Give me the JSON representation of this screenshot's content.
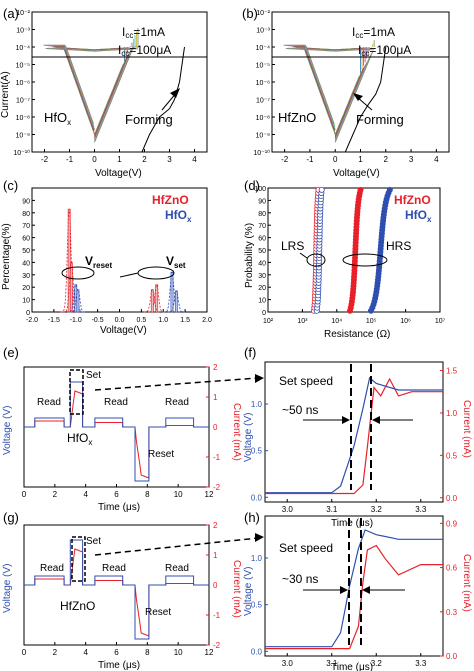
{
  "colors": {
    "blue": "#2f4fb0",
    "red": "#e8202a",
    "black": "#000000",
    "lightblue": "#b9c3ee",
    "pink": "#f2b7b7"
  },
  "panels": {
    "a": {
      "letter": "(a)",
      "material": "HfO",
      "material_sub": "x",
      "icc1": "I",
      "icc1_sub": "cc",
      "icc1_val": "=1mA",
      "icc2_val": "=100μA",
      "forming": "Forming",
      "xlabel": "Voltage(V)",
      "ylabel": "Current(A)"
    },
    "b": {
      "letter": "(b)",
      "material": "HfZnO",
      "icc1_val": "=1mA",
      "icc2_val": "=100μA",
      "forming": "Forming",
      "xlabel": "Voltage(V)"
    },
    "c": {
      "letter": "(c)",
      "legend1": "HfZnO",
      "legend2": "HfO",
      "legend2_sub": "x",
      "vreset": "V",
      "vreset_sub": "reset",
      "vset": "V",
      "vset_sub": "set",
      "xlabel": "Voltage(V)",
      "ylabel": "Percentage(%)"
    },
    "d": {
      "letter": "(d)",
      "legend1": "HfZnO",
      "legend2": "HfO",
      "legend2_sub": "x",
      "lrs": "LRS",
      "hrs": "HRS",
      "xlabel": "Resistance (Ω)",
      "ylabel": "Probability (%)"
    },
    "e": {
      "letter": "(e)",
      "read1": "Read",
      "read2": "Read",
      "read3": "Read",
      "set": "Set",
      "reset": "Reset",
      "material": "HfO",
      "material_sub": "x",
      "xlabel": "Time (μs)",
      "ylabel_left": "Voltage (V)",
      "ylabel_right": "Current (mA)"
    },
    "f": {
      "letter": "(f)",
      "speed": "Set speed",
      "time": "~50 ns",
      "xlabel": "Time (μs)",
      "ylabel_left": "Voltage (V)",
      "ylabel_right": "Current (mA)"
    },
    "g": {
      "letter": "(g)",
      "read1": "Read",
      "read2": "Read",
      "read3": "Read",
      "set": "Set",
      "reset": "Reset",
      "material": "HfZnO",
      "xlabel": "Time (μs)",
      "ylabel_left": "Voltage (V)",
      "ylabel_right": "Current (mA)"
    },
    "h": {
      "letter": "(h)",
      "speed": "Set speed",
      "time": "~30 ns",
      "xlabel": "Time (μs)",
      "ylabel_left": "Voltage (V)",
      "ylabel_right": "Current (mA)"
    }
  },
  "chart_data": [
    {
      "panel": "a",
      "type": "line",
      "ylog": true,
      "xlim": [
        -2.5,
        4.5
      ],
      "ylim": [
        1e-10,
        0.01
      ],
      "xticks": [
        "-2",
        "-1",
        "0",
        "1",
        "2",
        "3",
        "4"
      ],
      "yticks": [
        "10⁻¹⁰",
        "10⁻⁹",
        "10⁻⁸",
        "10⁻⁷",
        "10⁻⁶",
        "10⁻⁵",
        "10⁻⁴",
        "10⁻³",
        "10⁻²"
      ],
      "compliance": [
        0.001,
        0.0001
      ],
      "series": [
        {
          "x": [
            1.9,
            2.2,
            2.6,
            3.0,
            3.2,
            3.4,
            3.6
          ],
          "y": [
            1e-10,
            1e-09,
            1e-08,
            3e-08,
            1e-07,
            1e-06,
            0.0001
          ]
        }
      ]
    },
    {
      "panel": "b",
      "type": "line",
      "ylog": true,
      "xlim": [
        -2.5,
        4.5
      ],
      "ylim": [
        1e-10,
        0.01
      ],
      "xticks": [
        "-2",
        "-1",
        "0",
        "1",
        "2",
        "3",
        "4"
      ],
      "yticks": [
        "10⁻¹⁰",
        "10⁻⁹",
        "10⁻⁸",
        "10⁻⁷",
        "10⁻⁶",
        "10⁻⁵",
        "10⁻⁴",
        "10⁻³",
        "10⁻²"
      ],
      "compliance": [
        0.001,
        0.0001
      ],
      "series": [
        {
          "x": [
            0.4,
            0.7,
            1.0,
            1.3,
            1.6,
            1.8,
            2.0
          ],
          "y": [
            1e-10,
            1e-09,
            1e-08,
            5e-08,
            2e-07,
            1e-06,
            0.0001
          ]
        }
      ]
    },
    {
      "panel": "c",
      "type": "bar",
      "xlim": [
        -2.0,
        2.0
      ],
      "ylim": [
        0,
        100
      ],
      "xticks": [
        "-2.0",
        "-1.5",
        "-1.0",
        "-0.5",
        "0.0",
        "0.5",
        "1.0",
        "1.5",
        "2.0"
      ],
      "yticks": [
        "0",
        "10",
        "20",
        "30",
        "40",
        "50",
        "60",
        "70",
        "80",
        "90"
      ],
      "series": [
        {
          "name": "HfZnO",
          "bars": [
            [
              -1.15,
              83
            ],
            [
              -1.1,
              40
            ],
            [
              0.85,
              22
            ],
            [
              0.75,
              18
            ]
          ]
        },
        {
          "name": "HfOx",
          "bars": [
            [
              -1.0,
              22
            ],
            [
              -0.95,
              18
            ],
            [
              1.2,
              32
            ],
            [
              1.3,
              17
            ]
          ]
        }
      ]
    },
    {
      "panel": "d",
      "type": "scatter",
      "xlog": true,
      "xlim": [
        100,
        10000000
      ],
      "ylim": [
        0,
        100
      ],
      "xticks": [
        "10²",
        "10³",
        "10⁴",
        "10⁵",
        "10⁶",
        "10⁷"
      ],
      "yticks": [
        "0",
        "10",
        "20",
        "30",
        "40",
        "50",
        "60",
        "70",
        "80",
        "90",
        "100"
      ],
      "series": [
        {
          "name": "HfZnO LRS",
          "x_range": [
            2000,
            3200
          ]
        },
        {
          "name": "HfOx LRS",
          "x_range": [
            2400,
            4000
          ]
        },
        {
          "name": "HfZnO HRS",
          "x_range": [
            20000,
            60000
          ]
        },
        {
          "name": "HfOx HRS",
          "x_range": [
            70000,
            500000
          ]
        }
      ]
    },
    {
      "panel": "e",
      "type": "line",
      "xlim": [
        0,
        12
      ],
      "ylim": [
        -2,
        2
      ],
      "ylim_right": [
        -2,
        2
      ],
      "xticks": [
        "0",
        "2",
        "4",
        "6",
        "8",
        "10",
        "12"
      ],
      "yticks_right": [
        "-2",
        "-1",
        "0",
        "1",
        "2"
      ]
    },
    {
      "panel": "f",
      "type": "line",
      "xlim": [
        2.95,
        3.35
      ],
      "ylim": [
        -0.05,
        1.45
      ],
      "ylim_right": [
        -0.05,
        1.6
      ],
      "xticks": [
        "3.0",
        "3.1",
        "3.2",
        "3.3"
      ],
      "yticks": [
        "0.0",
        "0.5",
        "1.0"
      ],
      "yticks_right": [
        "0.0",
        "0.5",
        "1.0",
        "1.5"
      ],
      "series": [
        {
          "name": "Voltage",
          "x": [
            2.95,
            3.1,
            3.12,
            3.15,
            3.17,
            3.185,
            3.2,
            3.25,
            3.3,
            3.35
          ],
          "y": [
            0.05,
            0.05,
            0.12,
            0.55,
            0.95,
            1.28,
            1.22,
            1.15,
            1.15,
            1.15
          ]
        },
        {
          "name": "Current",
          "x": [
            2.95,
            3.15,
            3.17,
            3.18,
            3.195,
            3.21,
            3.23,
            3.25,
            3.28,
            3.35
          ],
          "y": [
            0.05,
            0.05,
            0.15,
            0.6,
            1.3,
            1.2,
            1.4,
            1.2,
            1.25,
            1.25
          ]
        }
      ]
    },
    {
      "panel": "g",
      "type": "line",
      "xlim": [
        0,
        12
      ],
      "ylim": [
        -2,
        2
      ],
      "ylim_right": [
        -2,
        2
      ],
      "xticks": [
        "0",
        "2",
        "4",
        "6",
        "8",
        "10",
        "12"
      ],
      "yticks_right": [
        "-2",
        "-1",
        "0",
        "1",
        "2"
      ]
    },
    {
      "panel": "h",
      "type": "line",
      "xlim": [
        2.95,
        3.35
      ],
      "ylim": [
        -0.05,
        1.45
      ],
      "ylim_right": [
        0,
        0.95
      ],
      "xticks": [
        "3.0",
        "3.1",
        "3.2",
        "3.3"
      ],
      "yticks": [
        "0.0",
        "0.5",
        "1.0"
      ],
      "yticks_right": [
        "0.0",
        "0.3",
        "0.6",
        "0.9"
      ],
      "series": [
        {
          "name": "Voltage",
          "x": [
            2.95,
            3.1,
            3.12,
            3.14,
            3.16,
            3.175,
            3.2,
            3.25,
            3.3,
            3.35
          ],
          "y": [
            0.05,
            0.05,
            0.2,
            0.7,
            1.1,
            1.3,
            1.25,
            1.2,
            1.2,
            1.2
          ]
        },
        {
          "name": "Current",
          "x": [
            2.95,
            3.14,
            3.16,
            3.17,
            3.18,
            3.2,
            3.22,
            3.25,
            3.3,
            3.35
          ],
          "y": [
            0.05,
            0.05,
            0.2,
            0.5,
            0.72,
            0.75,
            0.66,
            0.55,
            0.62,
            0.62
          ]
        }
      ]
    }
  ]
}
